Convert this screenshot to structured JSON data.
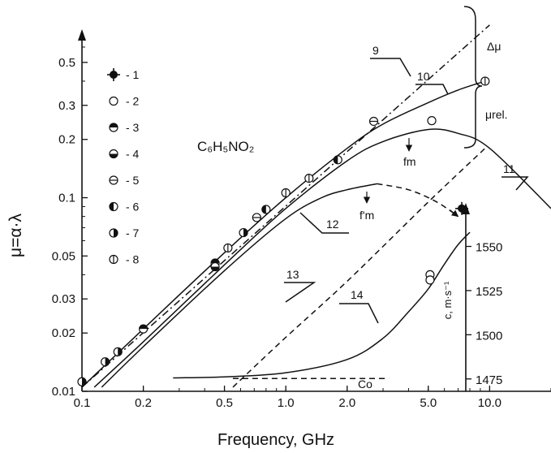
{
  "chart_data": {
    "type": "line",
    "title": "",
    "xlabel": "Frequency, GHz",
    "ylabel": "μ=α·λ",
    "ylabel_right": "c, m·s⁻¹",
    "xscale": "log",
    "yscale": "log",
    "xlim": [
      0.1,
      20
    ],
    "ylim": [
      0.01,
      0.7
    ],
    "ylim_right": [
      1468,
      1570
    ],
    "x_ticks": [
      "0.1",
      "0.2",
      "0.5",
      "1.0",
      "2.0",
      "5.0",
      "10.0"
    ],
    "y_ticks": [
      "0.01",
      "0.02",
      "0.03",
      "0.05",
      "0.1",
      "0.2",
      "0.3",
      "0.5"
    ],
    "y_ticks_right": [
      "1475",
      "1500",
      "1525",
      "1550"
    ],
    "compound": "C₆H₅NO₂",
    "legend": [
      "- 1",
      "- 2",
      "- 3",
      "- 4",
      "- 5",
      "- 6",
      "- 7",
      "- 8"
    ],
    "annotations": {
      "delta_mu": "Δμ",
      "mu_rel": "μrel.",
      "f_m": "fm",
      "f_m_prime": "f'm",
      "c_o": "Co",
      "curve_labels": [
        "9",
        "10",
        "11",
        "12",
        "13",
        "14"
      ]
    },
    "series": [
      {
        "label": "9",
        "style": "dash-dot",
        "x": [
          0.1,
          10
        ],
        "y": [
          0.0105,
          0.78
        ]
      },
      {
        "label": "10",
        "style": "solid",
        "x": [
          0.1,
          0.2,
          0.5,
          1,
          2,
          3,
          5,
          7,
          9.5
        ],
        "y": [
          0.0105,
          0.021,
          0.052,
          0.1,
          0.18,
          0.24,
          0.31,
          0.36,
          0.4
        ]
      },
      {
        "label": "11",
        "style": "solid",
        "x": [
          0.115,
          0.2,
          0.5,
          1,
          2,
          3,
          5,
          7,
          10,
          20
        ],
        "y": [
          0.0105,
          0.018,
          0.045,
          0.088,
          0.155,
          0.195,
          0.225,
          0.215,
          0.18,
          0.088
        ]
      },
      {
        "label": "12",
        "style": "solid",
        "x": [
          0.125,
          0.2,
          0.5,
          1,
          1.5,
          2,
          2.8
        ],
        "y": [
          0.0105,
          0.017,
          0.042,
          0.078,
          0.1,
          0.11,
          0.118
        ]
      },
      {
        "label": "12-cont",
        "style": "dashed",
        "x": [
          2.8,
          4,
          5.5,
          7
        ],
        "y": [
          0.118,
          0.11,
          0.095,
          0.08
        ]
      },
      {
        "label": "13",
        "style": "dashed",
        "x": [
          0.55,
          1,
          2,
          5,
          9.5
        ],
        "y": [
          0.0105,
          0.019,
          0.037,
          0.095,
          0.18
        ]
      },
      {
        "label": "14",
        "style": "solid",
        "axis": "right",
        "x": [
          0.28,
          0.5,
          1,
          2,
          3,
          4,
          5,
          6,
          7,
          8
        ],
        "y": [
          1475.6,
          1476.2,
          1478.5,
          1486,
          1498,
          1513,
          1526,
          1540,
          1551,
          1558
        ]
      },
      {
        "label": "Co",
        "style": "dashed",
        "axis": "right",
        "x": [
          0.55,
          3.2
        ],
        "y": [
          1475.2,
          1475.2
        ]
      }
    ],
    "points": [
      {
        "marker": "1",
        "x": 7.3,
        "y": 0.088
      },
      {
        "marker": "2",
        "x": 5.2,
        "y": 0.25
      },
      {
        "marker": "2",
        "x": 5.1,
        "y": 1534,
        "axis": "right"
      },
      {
        "marker": "2",
        "x": 5.1,
        "y": 1531,
        "axis": "right"
      },
      {
        "marker": "3",
        "x": 0.2,
        "y": 0.021
      },
      {
        "marker": "3",
        "x": 0.45,
        "y": 0.046
      },
      {
        "marker": "4",
        "x": 0.45,
        "y": 0.044
      },
      {
        "marker": "5",
        "x": 0.72,
        "y": 0.079
      },
      {
        "marker": "5",
        "x": 2.7,
        "y": 0.248
      },
      {
        "marker": "6",
        "x": 0.8,
        "y": 0.087
      },
      {
        "marker": "6",
        "x": 1.8,
        "y": 0.157
      },
      {
        "marker": "7",
        "x": 0.1,
        "y": 0.0112
      },
      {
        "marker": "7",
        "x": 0.13,
        "y": 0.0142
      },
      {
        "marker": "7",
        "x": 0.15,
        "y": 0.016
      },
      {
        "marker": "7",
        "x": 0.62,
        "y": 0.066
      },
      {
        "marker": "8",
        "x": 0.52,
        "y": 0.055
      },
      {
        "marker": "8",
        "x": 1.0,
        "y": 0.106
      },
      {
        "marker": "8",
        "x": 1.3,
        "y": 0.126
      },
      {
        "marker": "8",
        "x": 9.5,
        "y": 0.4
      }
    ]
  }
}
